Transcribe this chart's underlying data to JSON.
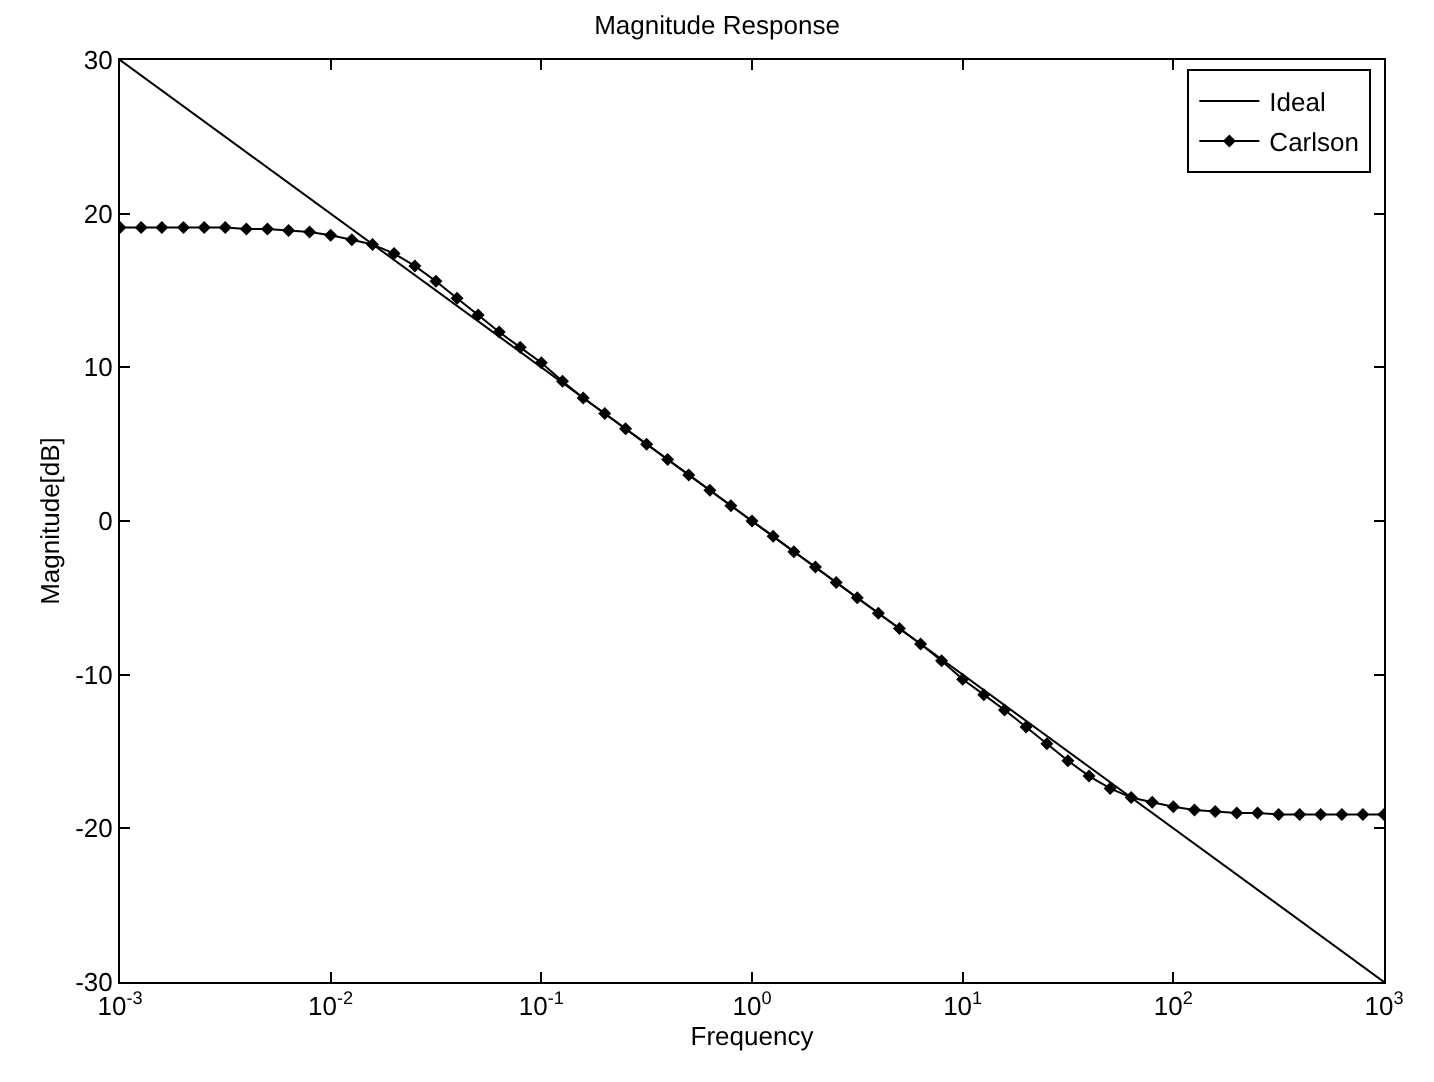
{
  "chart_data": {
    "type": "line",
    "title": "Magnitude Response",
    "xlabel": "Frequency",
    "ylabel": "Magnitude[dB]",
    "log": "x",
    "xlim": [
      0.001,
      1000
    ],
    "ylim": [
      -30,
      30
    ],
    "xticks": [
      {
        "value": 0.001,
        "label": "10$^{-3}$"
      },
      {
        "value": 0.01,
        "label": "10$^{-2}$"
      },
      {
        "value": 0.1,
        "label": "10$^{-1}$"
      },
      {
        "value": 1,
        "label": "10$^{0}$"
      },
      {
        "value": 10,
        "label": "10$^{1}$"
      },
      {
        "value": 100,
        "label": "10$^{2}$"
      },
      {
        "value": 1000,
        "label": "10$^{3}$"
      }
    ],
    "yticks": [
      -30,
      -20,
      -10,
      0,
      10,
      20,
      30
    ],
    "legend": "top right",
    "series": [
      {
        "name": "Ideal",
        "color": "#000000",
        "marker": "none",
        "x": [
          0.001,
          1000
        ],
        "values": [
          30,
          -30
        ]
      },
      {
        "name": "Carlson",
        "color": "#000000",
        "marker": "diamond",
        "x": [
          0.001,
          0.00126,
          0.00158,
          0.002,
          0.00251,
          0.00316,
          0.00398,
          0.00501,
          0.00631,
          0.00794,
          0.01,
          0.0126,
          0.0158,
          0.02,
          0.0251,
          0.0316,
          0.0398,
          0.0501,
          0.0631,
          0.0794,
          0.1,
          0.126,
          0.158,
          0.2,
          0.251,
          0.316,
          0.398,
          0.501,
          0.631,
          0.794,
          1,
          1.26,
          1.58,
          2,
          2.51,
          3.16,
          3.98,
          5.01,
          6.31,
          7.94,
          10,
          12.6,
          15.8,
          20,
          25.1,
          31.6,
          39.8,
          50.1,
          63.1,
          79.4,
          100,
          126,
          158,
          200,
          251,
          316,
          398,
          501,
          631,
          794,
          1000
        ],
        "values": [
          19.1,
          19.1,
          19.1,
          19.1,
          19.1,
          19.1,
          19.0,
          19.0,
          18.9,
          18.8,
          18.6,
          18.3,
          18.0,
          17.4,
          16.6,
          15.6,
          14.5,
          13.4,
          12.3,
          11.3,
          10.3,
          9.1,
          8.0,
          7.0,
          6.0,
          5.0,
          4.0,
          3.0,
          2.0,
          1.0,
          0,
          -1.0,
          -2.0,
          -3.0,
          -4.0,
          -5.0,
          -6.0,
          -7.0,
          -8.0,
          -9.1,
          -10.3,
          -11.3,
          -12.3,
          -13.4,
          -14.5,
          -15.6,
          -16.6,
          -17.4,
          -18.0,
          -18.3,
          -18.6,
          -18.8,
          -18.9,
          -19.0,
          -19.0,
          -19.1,
          -19.1,
          -19.1,
          -19.1,
          -19.1,
          -19.1
        ]
      }
    ]
  }
}
